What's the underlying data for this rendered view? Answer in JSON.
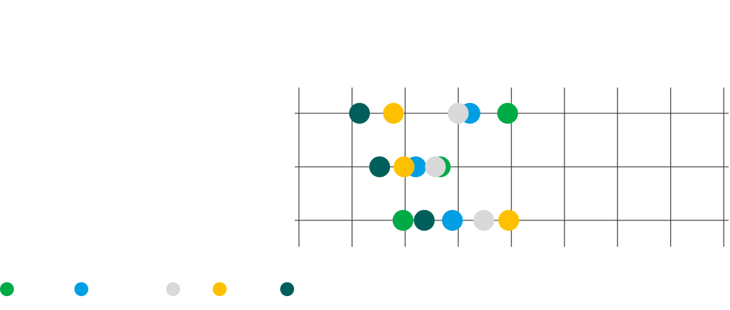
{
  "chart_data": {
    "type": "dot",
    "categories": [
      null,
      null,
      null
    ],
    "xlim": [
      0,
      8
    ],
    "xticks": [
      0,
      1,
      2,
      3,
      4,
      5,
      6,
      7,
      8
    ],
    "grid": true,
    "series": [
      {
        "color": "#00aa45",
        "values": [
          3.93,
          2.66,
          1.96
        ]
      },
      {
        "color": "#009fe3",
        "values": [
          3.22,
          2.2,
          2.89
        ]
      },
      {
        "color": "#d9d9d9",
        "values": [
          3.0,
          2.57,
          3.48
        ]
      },
      {
        "color": "#ffc000",
        "values": [
          1.78,
          1.98,
          3.95
        ]
      },
      {
        "color": "#005f5a",
        "values": [
          1.14,
          1.52,
          2.36
        ]
      }
    ]
  }
}
